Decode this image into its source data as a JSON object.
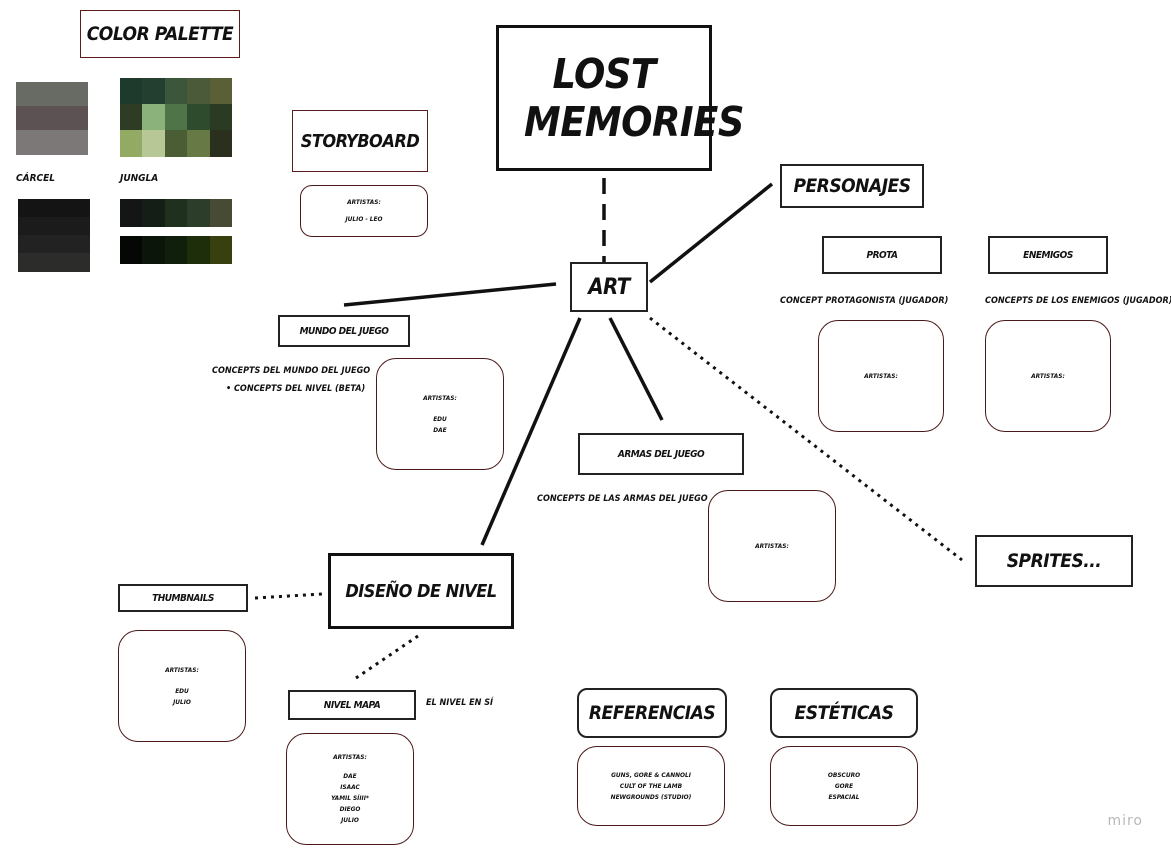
{
  "title": "LOST MEMORIES",
  "art": "ART",
  "palette": {
    "heading": "COLOR PALETTE",
    "carcel_label": "CÁRCEL",
    "jungla_label": "JUNGLA",
    "carcel_light": [
      "#676b64",
      "#5c5254",
      "#7d7878"
    ],
    "carcel_dark": [
      "#141414",
      "#1b1b1b",
      "#222222",
      "#2c2c2b"
    ],
    "jungla_grid": [
      [
        "#1d3a2c",
        "#233f2f",
        "#3b563a",
        "#4b5b3a",
        "#5a5f35"
      ],
      [
        "#2e3c26",
        "#8bb27b",
        "#4f7447",
        "#2f4b2e",
        "#2b3a22"
      ],
      [
        "#93aa64",
        "#b7c796",
        "#4a5d35",
        "#677a46",
        "#2b2f1d"
      ]
    ],
    "jungla_dark1": [
      "#141615",
      "#151d17",
      "#20301f",
      "#2c3d29",
      "#474a35"
    ],
    "jungla_dark2": [
      "#050705",
      "#0c1509",
      "#101f0b",
      "#1e2e0b",
      "#37400e"
    ]
  },
  "storyboard": {
    "label": "STORYBOARD",
    "artists_label": "ARTISTAS:",
    "artists": "JULIO - LEO"
  },
  "personajes": {
    "label": "PERSONAJES",
    "prota": {
      "label": "PROTA",
      "note": "CONCEPT PROTAGONISTA (JUGADOR)",
      "artists_label": "ARTISTAS:"
    },
    "enemigos": {
      "label": "ENEMIGOS",
      "note": "CONCEPTS DE LOS ENEMIGOS (JUGADOR)",
      "artists_label": "ARTISTAS:"
    }
  },
  "mundo": {
    "label": "MUNDO DEL JUEGO",
    "note1": "CONCEPTS DEL MUNDO DEL JUEGO",
    "note2": "•   CONCEPTS DEL NIVEL (BETA)",
    "artists_label": "ARTISTAS:",
    "artists": [
      "EDU",
      "DAE"
    ]
  },
  "armas": {
    "label": "ARMAS DEL JUEGO",
    "note": "CONCEPTS DE LAS ARMAS DEL JUEGO",
    "artists_label": "ARTISTAS:"
  },
  "sprites": {
    "label": "SPRITES..."
  },
  "diseno": {
    "label": "DISEÑO DE NIVEL"
  },
  "thumbnails": {
    "label": "THUMBNAILS",
    "artists_label": "ARTISTAS:",
    "artists": [
      "EDU",
      "JULIO"
    ]
  },
  "nivel_mapa": {
    "label": "NIVEL MAPA",
    "note": "EL NIVEL EN SÍ",
    "artists_label": "ARTISTAS:",
    "artists": [
      "DAE",
      "ISAAC",
      "YAMIL SÍIII*",
      "DIEGO",
      "JULIO"
    ]
  },
  "referencias": {
    "label": "REFERENCIAS",
    "items": [
      "GUNS, GORE & CANNOLI",
      "CULT OF THE LAMB",
      "NEWGROUNDS (STUDIO)"
    ]
  },
  "esteticas": {
    "label": "ESTÉTICAS",
    "items": [
      "OBSCURO",
      "GORE",
      "ESPACIAL"
    ]
  },
  "watermark": "miro"
}
